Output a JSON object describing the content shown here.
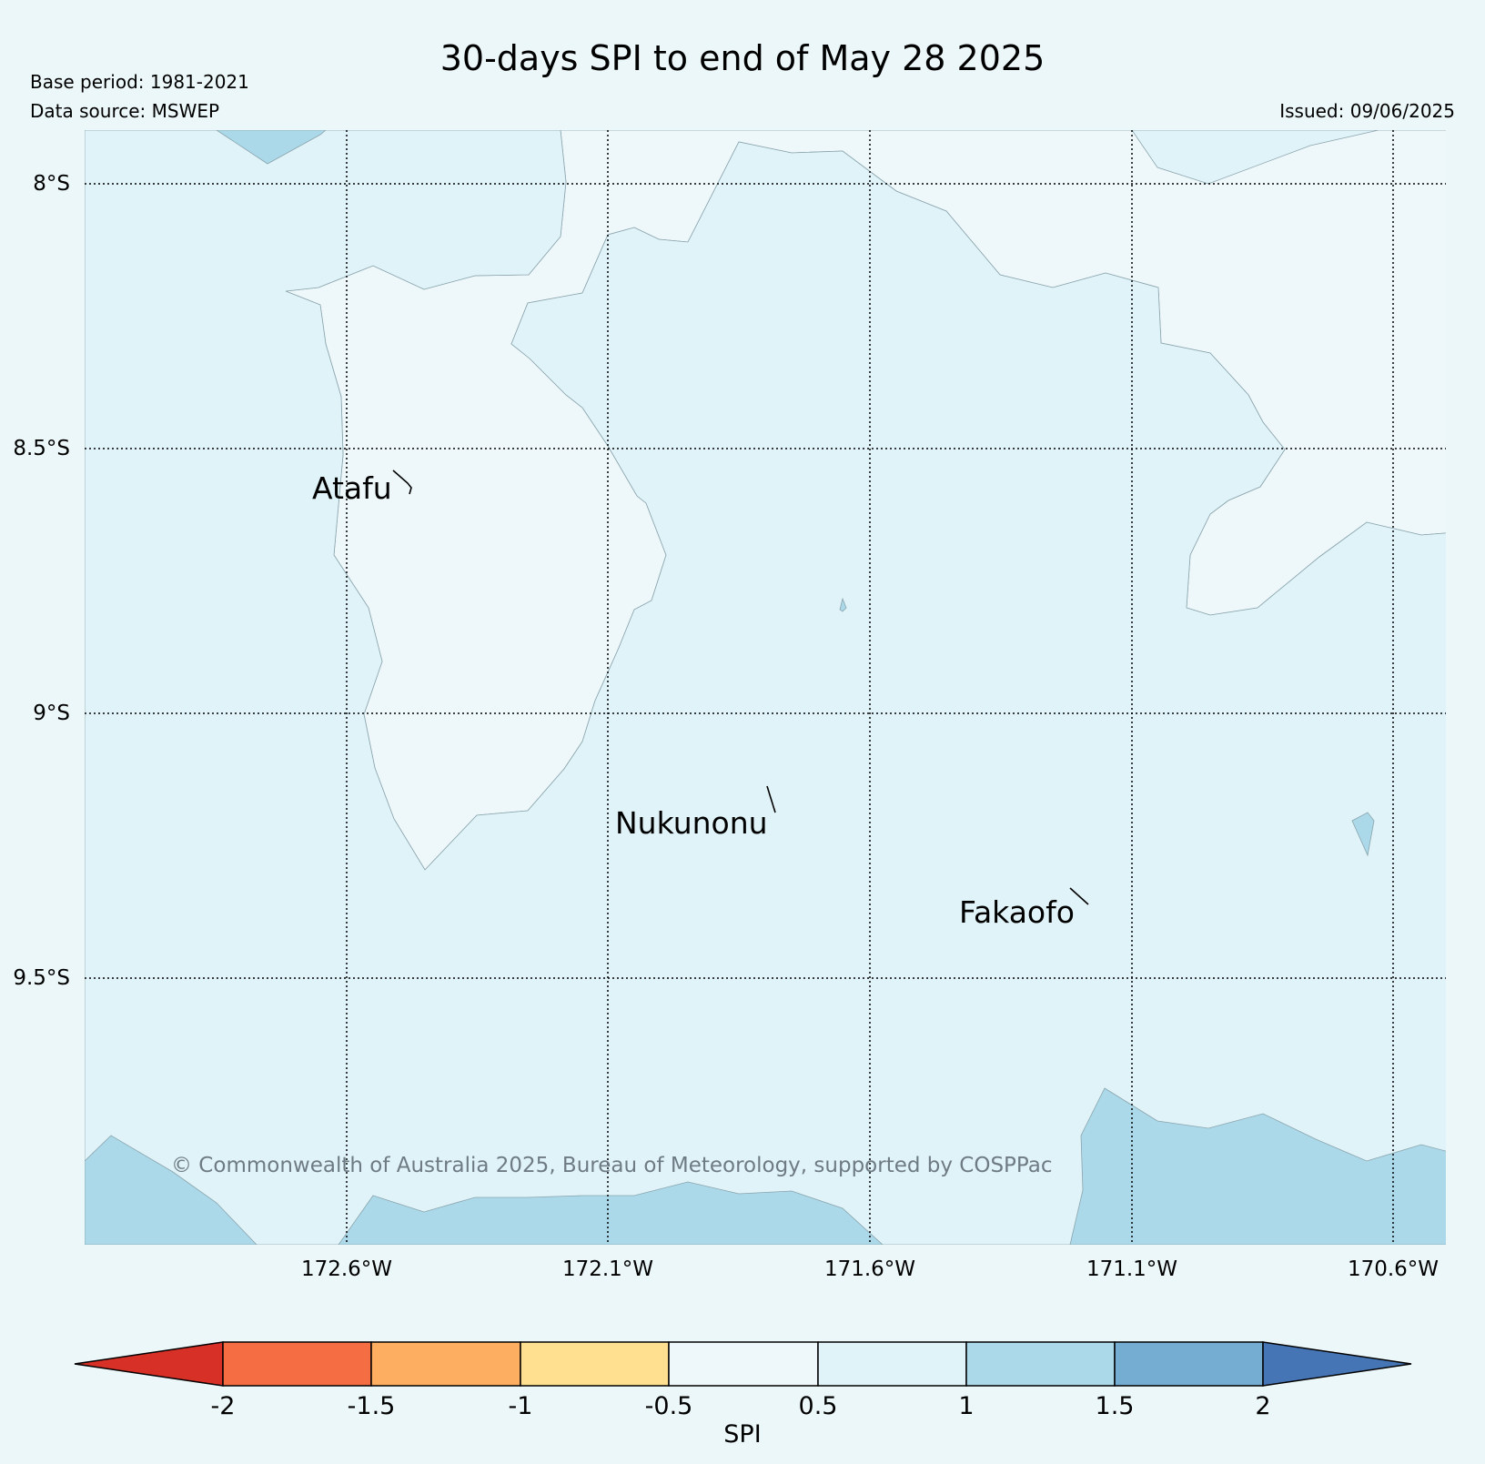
{
  "title": "30-days SPI to end of May 28 2025",
  "base_period": "Base period: 1981-2021",
  "data_source": "Data source: MSWEP",
  "issued": "Issued: 09/06/2025",
  "copyright": "© Commonwealth of Australia 2025, Bureau of Meteorology, supported by COSPPac",
  "latitude_labels": [
    "8°S",
    "8.5°S",
    "9°S",
    "9.5°S"
  ],
  "longitude_labels": [
    "172.6°W",
    "172.1°W",
    "171.6°W",
    "171.1°W",
    "170.6°W"
  ],
  "places": [
    {
      "name": "Atafu"
    },
    {
      "name": "Nukunonu"
    },
    {
      "name": "Fakaofo"
    }
  ],
  "legend": {
    "title": "SPI",
    "ticks": [
      "-2",
      "-1.5",
      "-1",
      "-0.5",
      "0.5",
      "1",
      "1.5",
      "2"
    ],
    "colors": [
      "#d73027",
      "#f46d43",
      "#fdae61",
      "#fee090",
      "#eef8fa",
      "#e0f3f8",
      "#abd9e9",
      "#74add1",
      "#4575b4"
    ]
  },
  "map_colors": {
    "spi_0_to_0_5": "#eef8fa",
    "spi_0_5_to_1": "#e0f3f8",
    "spi_1_to_1_5": "#abd9e9"
  }
}
